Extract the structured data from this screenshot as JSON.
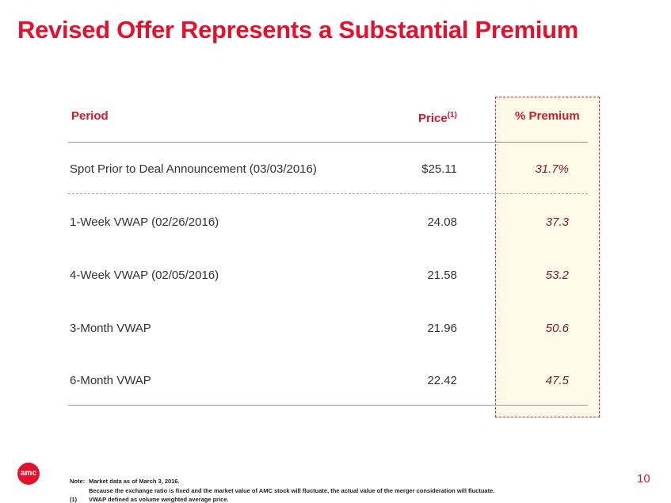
{
  "header": {
    "title": "Revised Offer Represents a Substantial Premium"
  },
  "table": {
    "columns": [
      "Period",
      "Price",
      "% Premium"
    ],
    "price_footnote_ref": "(1)",
    "rows": [
      [
        "Spot Prior to Deal Announcement (03/03/2016)",
        "$25.11",
        "31.7%"
      ],
      [
        "1-Week VWAP (02/26/2016)",
        "24.08",
        "37.3"
      ],
      [
        "4-Week VWAP (02/05/2016)",
        "21.58",
        "53.2"
      ],
      [
        "3-Month VWAP",
        "21.96",
        "50.6"
      ],
      [
        "6-Month VWAP",
        "22.42",
        "47.5"
      ]
    ]
  },
  "footer": {
    "logo": "amc",
    "notes": [
      {
        "label": "Note:",
        "text": "Market data as of March 3, 2016."
      },
      {
        "text": "Because the exchange ratio is fixed and the market value of AMC stock will fluctuate, the actual value of the merger consideration will fluctuate."
      },
      {
        "label": "(1)",
        "text": "VWAP defined as volume weighted average price."
      }
    ],
    "page": "10"
  }
}
